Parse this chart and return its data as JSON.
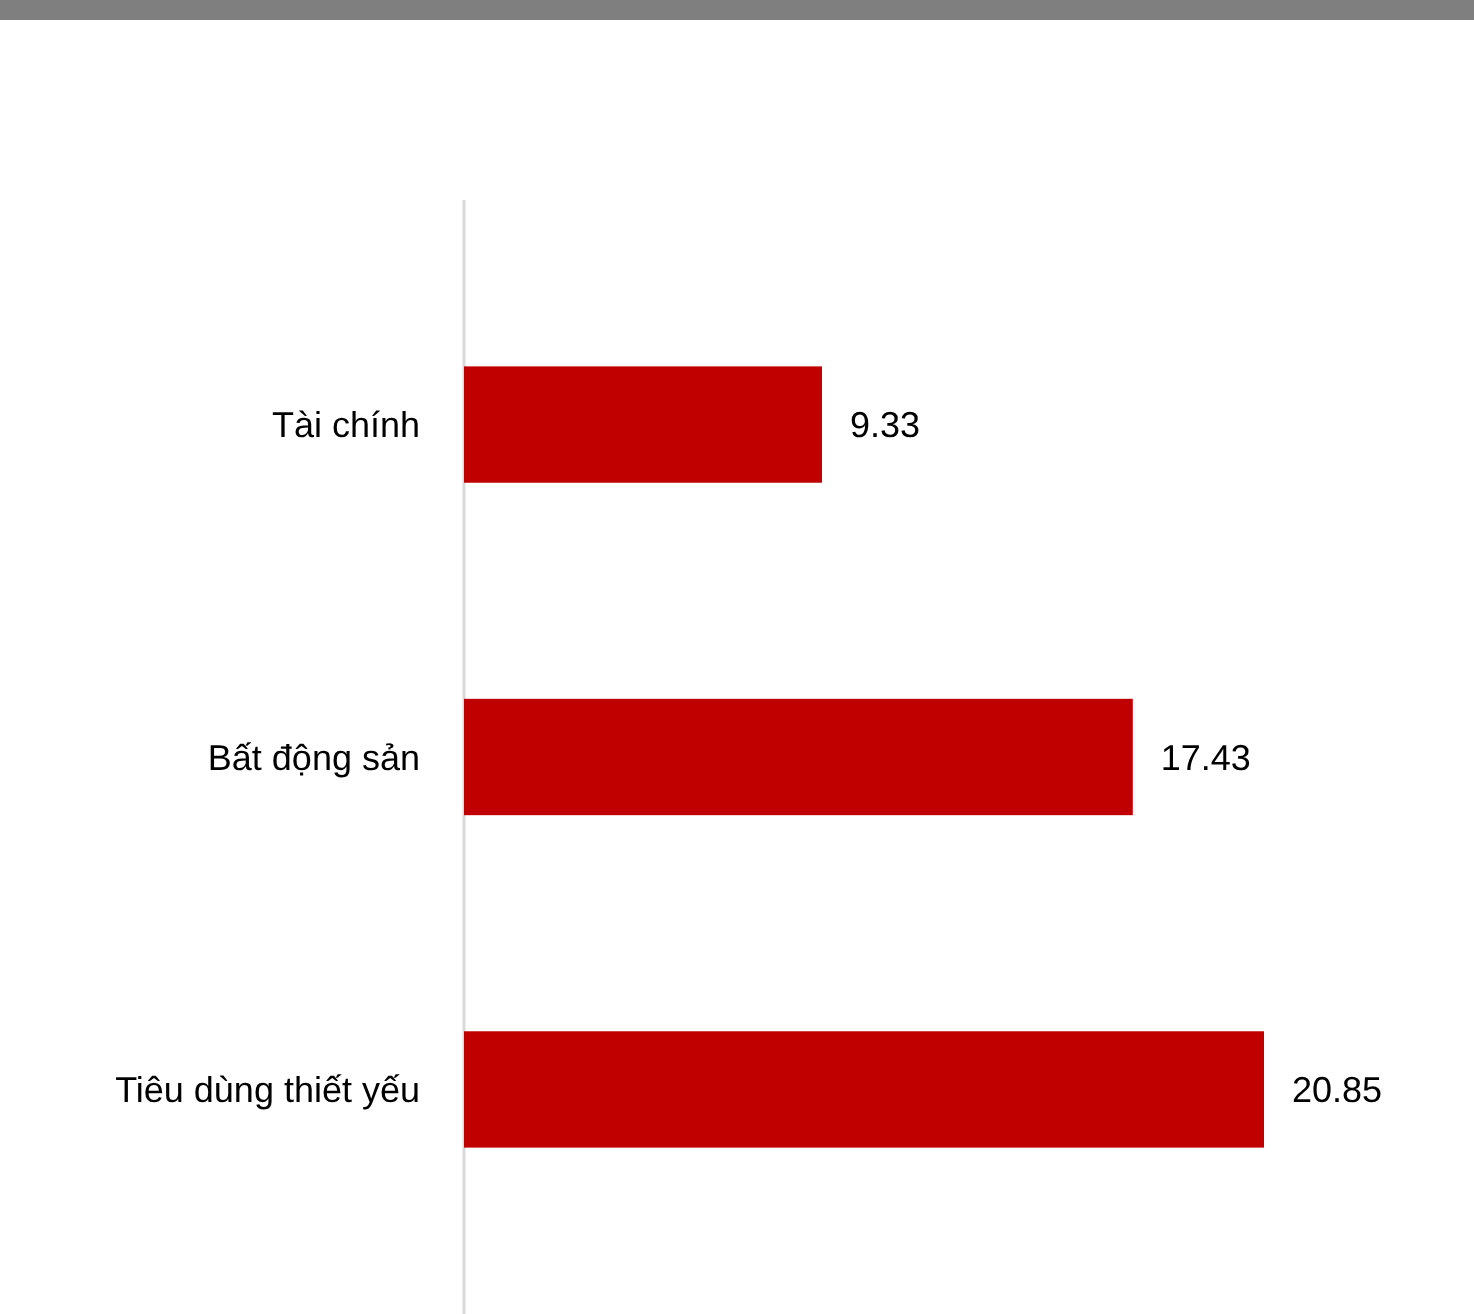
{
  "chart_data": {
    "type": "bar",
    "orientation": "horizontal",
    "categories": [
      "Tài chính",
      "Bất động sản",
      "Tiêu dùng thiết yếu"
    ],
    "series": [
      {
        "color": "#c00000",
        "values": [
          9.33,
          17.43,
          20.85
        ]
      }
    ],
    "data_labels": true
  }
}
